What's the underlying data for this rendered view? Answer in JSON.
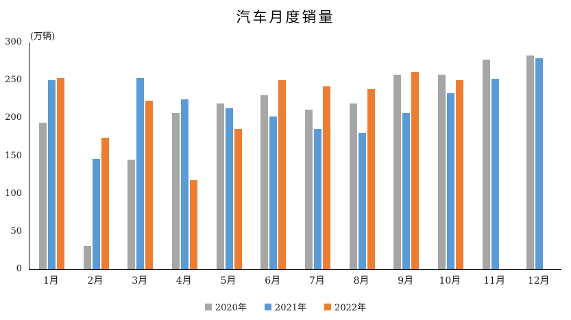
{
  "chart_data": {
    "type": "bar",
    "title": "汽车月度销量",
    "ylabel": "(万辆)",
    "xlabel": "",
    "categories": [
      "1月",
      "2月",
      "3月",
      "4月",
      "5月",
      "6月",
      "7月",
      "8月",
      "9月",
      "10月",
      "11月",
      "12月"
    ],
    "series": [
      {
        "name": "2020年",
        "color": "#A6A6A6",
        "values": [
          194,
          31,
          145,
          207,
          219,
          230,
          211,
          219,
          257,
          257,
          277,
          283
        ]
      },
      {
        "name": "2021年",
        "color": "#5B9BD5",
        "values": [
          250,
          146,
          253,
          225,
          213,
          202,
          186,
          180,
          207,
          233,
          252,
          279
        ]
      },
      {
        "name": "2022年",
        "color": "#ED7D31",
        "values": [
          253,
          174,
          223,
          118,
          186,
          250,
          242,
          238,
          261,
          250,
          null,
          null
        ]
      }
    ],
    "ylim": [
      0,
      300
    ],
    "yticks": [
      0,
      50,
      100,
      150,
      200,
      250,
      300
    ],
    "grid": false,
    "legend_position": "bottom",
    "axis_color": "#000000",
    "text_color": "#1a1a1a"
  }
}
